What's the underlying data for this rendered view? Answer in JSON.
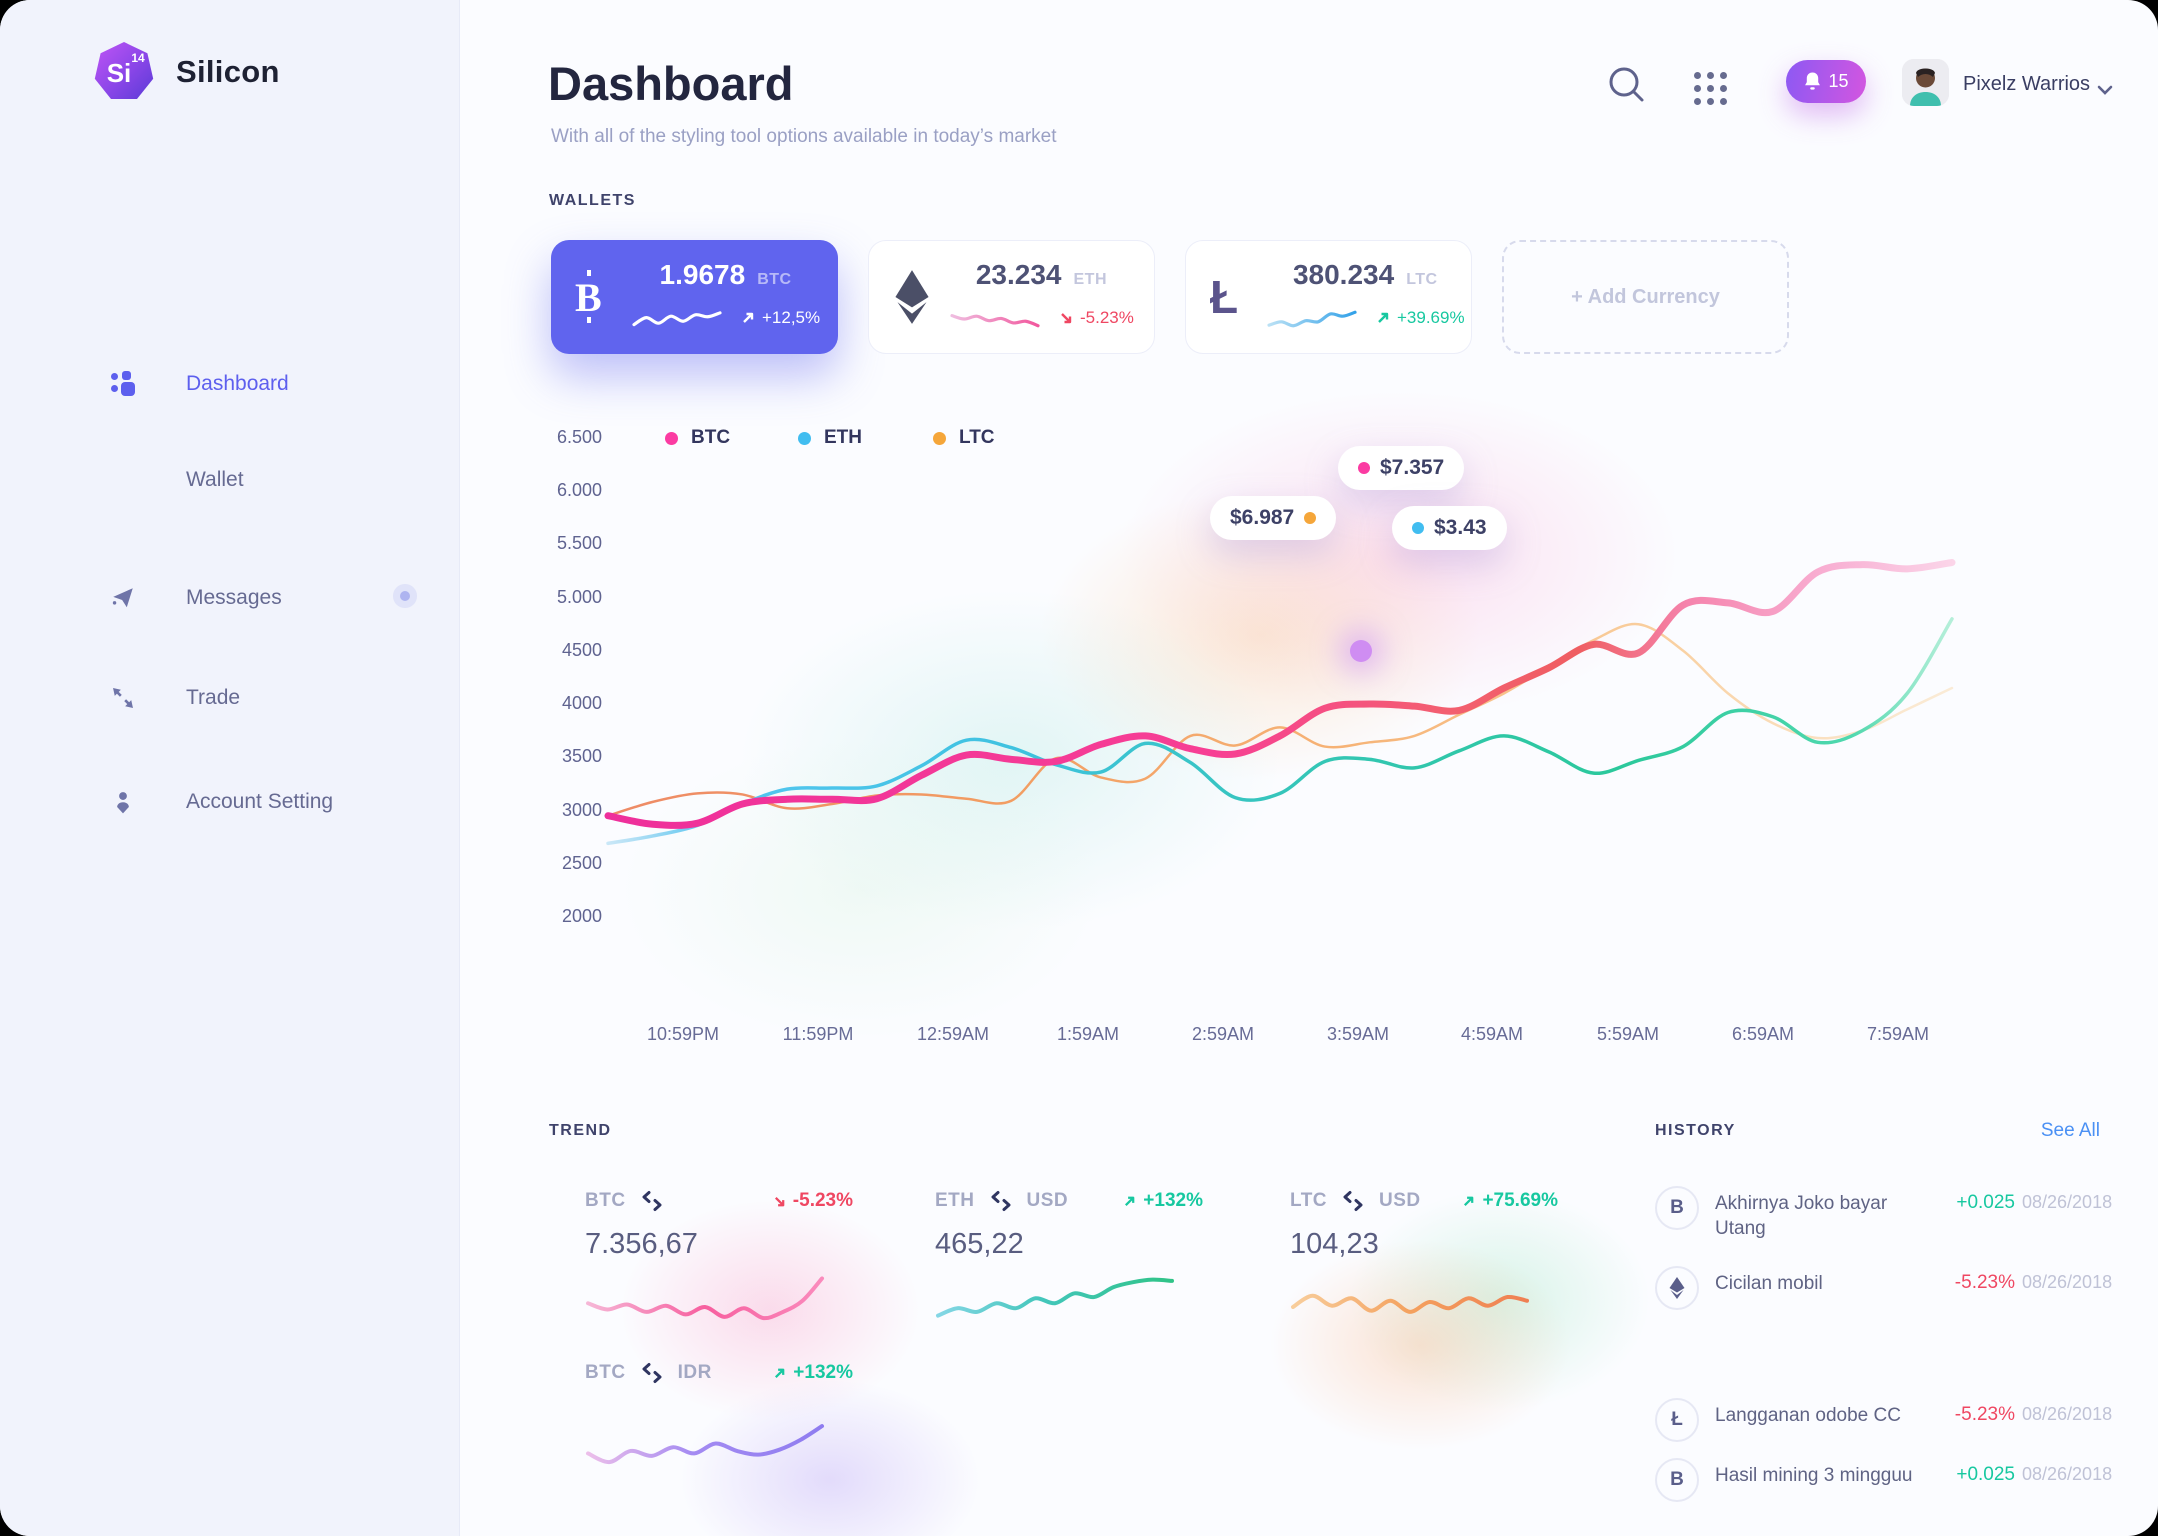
{
  "sidebar": {
    "logo": {
      "mark": "Si",
      "sup": "14",
      "name": "Silicon"
    },
    "items": [
      {
        "label": "Dashboard",
        "active": true
      },
      {
        "label": "Wallet",
        "active": false
      },
      {
        "label": "Messages",
        "active": false,
        "badge": true
      },
      {
        "label": "Trade",
        "active": false
      },
      {
        "label": "Account Setting",
        "active": false
      }
    ]
  },
  "header": {
    "title": "Dashboard",
    "subtitle": "With all of the styling tool options available in today’s market",
    "notification_count": "15",
    "user_name": "Pixelz Warrios"
  },
  "wallets": {
    "label": "WALLETS",
    "add_label": "+ Add Currency",
    "cards": [
      {
        "symbol": "BTC",
        "amount": "1.9678",
        "change": "+12,5%",
        "direction": "up",
        "spark": [
          30,
          55,
          35,
          60,
          42,
          65,
          58,
          72
        ],
        "stops": [
          [
            "0%",
            "#ffffff"
          ],
          [
            "100%",
            "#ffffff"
          ]
        ]
      },
      {
        "symbol": "ETH",
        "amount": "23.234",
        "change": "-5.23%",
        "direction": "down",
        "spark": [
          62,
          50,
          60,
          44,
          52,
          36,
          42,
          26
        ],
        "stops": [
          [
            "0%",
            "#efc0e2"
          ],
          [
            "100%",
            "#f2549b"
          ]
        ]
      },
      {
        "symbol": "LTC",
        "amount": "380.234",
        "change": "+39.69%",
        "direction": "up",
        "spark": [
          28,
          40,
          26,
          44,
          40,
          68,
          60,
          74
        ],
        "stops": [
          [
            "0%",
            "#bfe3f5"
          ],
          [
            "100%",
            "#2e9fe8"
          ]
        ]
      }
    ]
  },
  "chart_data": {
    "type": "line",
    "title": "",
    "xlabel": "time",
    "ylabel": "price",
    "ylim": [
      2000,
      6500
    ],
    "grid": false,
    "legend_position": "top",
    "y_ticks": [
      "6.500",
      "6.000",
      "5.500",
      "5.000",
      "4500",
      "4000",
      "3500",
      "3000",
      "2500",
      "2000"
    ],
    "x_ticks": [
      "10:59PM",
      "11:59PM",
      "12:59AM",
      "1:59AM",
      "2:59AM",
      "3:59AM",
      "4:59AM",
      "5:59AM",
      "6:59AM",
      "7:59AM"
    ],
    "legend": [
      {
        "name": "BTC",
        "color": "#fb3ba2"
      },
      {
        "name": "ETH",
        "color": "#41bdf0"
      },
      {
        "name": "LTC",
        "color": "#f5a63a"
      }
    ],
    "tooltips": [
      {
        "text": "$7.357",
        "series": "BTC",
        "color": "#fb3ba2"
      },
      {
        "text": "$6.987",
        "series": "LTC",
        "color": "#f5a63a"
      },
      {
        "text": "$3.43",
        "series": "ETH",
        "color": "#41bdf0"
      }
    ],
    "series": [
      {
        "name": "BTC",
        "stroke_width": 7,
        "values": [
          2950,
          2870,
          2880,
          3060,
          3105,
          3105,
          3110,
          3330,
          3520,
          3480,
          3460,
          3620,
          3700,
          3580,
          3530,
          3700,
          3960,
          4000,
          3980,
          3940,
          4150,
          4340,
          4560,
          4480,
          4930,
          4950,
          4870,
          5240,
          5310,
          5270,
          5330
        ],
        "stops": [
          [
            "0%",
            "#ee2f9b"
          ],
          [
            "45%",
            "#f73f94"
          ],
          [
            "62%",
            "#f35f70"
          ],
          [
            "72%",
            "#ef5e62"
          ],
          [
            "80%",
            "#f584ad"
          ],
          [
            "90%",
            "#f8aed2"
          ],
          [
            "100%",
            "#fbd7ea"
          ]
        ]
      },
      {
        "name": "ETH",
        "stroke_width": 3.5,
        "values": [
          2690,
          2760,
          2860,
          3060,
          3200,
          3210,
          3230,
          3420,
          3660,
          3590,
          3430,
          3360,
          3630,
          3450,
          3120,
          3160,
          3460,
          3480,
          3400,
          3560,
          3700,
          3550,
          3350,
          3470,
          3600,
          3920,
          3880,
          3640,
          3750,
          4100,
          4800
        ],
        "stops": [
          [
            "0%",
            "rgba(130,200,235,0.35)"
          ],
          [
            "8%",
            "#55c6f1"
          ],
          [
            "30%",
            "#3fc2e0"
          ],
          [
            "55%",
            "#33c6b2"
          ],
          [
            "75%",
            "#2bc89b"
          ],
          [
            "92%",
            "#4fd8ae"
          ],
          [
            "100%",
            "rgba(160,235,205,0.7)"
          ]
        ]
      },
      {
        "name": "LTC",
        "stroke_width": 2.5,
        "values": [
          2950,
          3080,
          3160,
          3150,
          3020,
          3060,
          3140,
          3150,
          3110,
          3090,
          3490,
          3310,
          3300,
          3700,
          3610,
          3780,
          3600,
          3640,
          3700,
          3900,
          4100,
          4350,
          4600,
          4750,
          4500,
          4100,
          3820,
          3680,
          3750,
          3950,
          4150
        ],
        "stops": [
          [
            "0%",
            "#ee8a66"
          ],
          [
            "30%",
            "#f29d62"
          ],
          [
            "55%",
            "#f6b376"
          ],
          [
            "78%",
            "#f9cf9f"
          ],
          [
            "100%",
            "rgba(250,225,190,0.6)"
          ]
        ]
      }
    ]
  },
  "trend": {
    "label": "TREND",
    "items": [
      {
        "base": "BTC",
        "quote": "",
        "change": "-5.23%",
        "direction": "down",
        "value": "7.356,67",
        "spark": [
          48,
          38,
          46,
          34,
          44,
          30,
          42,
          26,
          40,
          24,
          34,
          52,
          88
        ],
        "stops": [
          [
            "0%",
            "#f6b9d8"
          ],
          [
            "50%",
            "#f75f9f"
          ],
          [
            "100%",
            "#fa8cbd"
          ]
        ]
      },
      {
        "base": "ETH",
        "quote": "USD",
        "change": "+132%",
        "direction": "up",
        "value": "465,22",
        "spark": [
          28,
          40,
          34,
          48,
          40,
          56,
          48,
          64,
          58,
          74,
          82,
          86,
          84
        ],
        "stops": [
          [
            "0%",
            "#86d7e6"
          ],
          [
            "45%",
            "#43c6bb"
          ],
          [
            "100%",
            "#2fc386"
          ]
        ]
      },
      {
        "base": "LTC",
        "quote": "USD",
        "change": "+75.69%",
        "direction": "up",
        "value": "104,23",
        "spark": [
          42,
          60,
          44,
          56,
          36,
          52,
          34,
          50,
          40,
          56,
          44,
          58,
          52
        ],
        "stops": [
          [
            "0%",
            "#f8cf9e"
          ],
          [
            "50%",
            "#f4a15e"
          ],
          [
            "100%",
            "#ef7e52"
          ]
        ]
      },
      {
        "base": "BTC",
        "quote": "IDR",
        "change": "+132%",
        "direction": "up",
        "value": "",
        "spark": [
          30,
          16,
          34,
          26,
          40,
          30,
          46,
          34,
          28,
          36,
          52,
          74
        ],
        "stops": [
          [
            "0%",
            "#eec0ea"
          ],
          [
            "45%",
            "#a48bf2"
          ],
          [
            "100%",
            "#8e7cf0"
          ]
        ]
      }
    ]
  },
  "history": {
    "label": "HISTORY",
    "see_all": "See All",
    "rows": [
      {
        "coin": "BTC",
        "icon_glyph": "B",
        "title": "Akhirnya Joko bayar Utang",
        "amount": "+0.025",
        "amount_color": "#17c8a0",
        "date": "08/26/2018"
      },
      {
        "coin": "ETH",
        "icon_glyph": "",
        "title": "Cicilan mobil",
        "amount": "-5.23%",
        "amount_color": "#ef4762",
        "date": "08/26/2018"
      },
      {
        "coin": "LTC",
        "icon_glyph": "Ł",
        "title": "Langganan odobe CC",
        "amount": "-5.23%",
        "amount_color": "#ef4762",
        "date": "08/26/2018"
      },
      {
        "coin": "BTC",
        "icon_glyph": "B",
        "title": "Hasil mining 3 mingguu",
        "amount": "+0.025",
        "amount_color": "#17c8a0",
        "date": "08/26/2018"
      }
    ]
  }
}
